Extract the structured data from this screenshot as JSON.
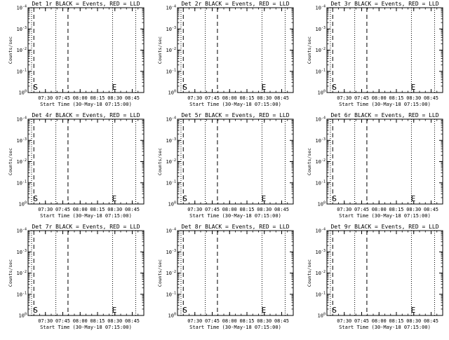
{
  "chart_data": [
    {
      "type": "line",
      "title": "Det 1r BLACK = Events, RED = LLD",
      "xlabel": "Start Time (30-May-18 07:15:00)",
      "ylabel": "Counts/sec"
    },
    {
      "type": "line",
      "title": "Det 2r BLACK = Events, RED = LLD",
      "xlabel": "Start Time (30-May-18 07:15:00)",
      "ylabel": "Counts/sec"
    },
    {
      "type": "line",
      "title": "Det 3r BLACK = Events, RED = LLD",
      "xlabel": "Start Time (30-May-18 07:15:00)",
      "ylabel": "Counts/sec"
    },
    {
      "type": "line",
      "title": "Det 4r BLACK = Events, RED = LLD",
      "xlabel": "Start Time (30-May-18 07:15:00)",
      "ylabel": "Counts/sec"
    },
    {
      "type": "line",
      "title": "Det 5r BLACK = Events, RED = LLD",
      "xlabel": "Start Time (30-May-18 07:15:00)",
      "ylabel": "Counts/sec"
    },
    {
      "type": "line",
      "title": "Det 6r BLACK = Events, RED = LLD",
      "xlabel": "Start Time (30-May-18 07:15:00)",
      "ylabel": "Counts/sec"
    },
    {
      "type": "line",
      "title": "Det 7r BLACK = Events, RED = LLD",
      "xlabel": "Start Time (30-May-18 07:15:00)",
      "ylabel": "Counts/sec"
    },
    {
      "type": "line",
      "title": "Det 8r BLACK = Events, RED = LLD",
      "xlabel": "Start Time (30-May-18 07:15:00)",
      "ylabel": "Counts/sec"
    },
    {
      "type": "line",
      "title": "Det 9r BLACK = Events, RED = LLD",
      "xlabel": "Start Time (30-May-18 07:15:00)",
      "ylabel": "Counts/sec"
    }
  ],
  "shared_axes": {
    "x_ticks": [
      "07:30",
      "07:45",
      "08:00",
      "08:15",
      "08:30",
      "08:45"
    ],
    "x_tick_minutes": [
      30,
      45,
      60,
      75,
      90,
      105
    ],
    "xlim_minutes": [
      15,
      115
    ],
    "y_scale": "log",
    "y_ticks": [
      {
        "base": "10",
        "exp": "0",
        "value": 1
      },
      {
        "base": "10",
        "exp": "-1",
        "value": 0.1
      },
      {
        "base": "10",
        "exp": "-2",
        "value": 0.01
      },
      {
        "base": "10",
        "exp": "-3",
        "value": 0.001
      },
      {
        "base": "10",
        "exp": "-4",
        "value": 0.0001
      }
    ]
  },
  "markers": {
    "dotted_lines_minutes": [
      18,
      39,
      88,
      108
    ],
    "dashed_lines_minutes": [
      20,
      49.5
    ],
    "labels": [
      {
        "text": "S",
        "minute": 19.5
      },
      {
        "text": "E",
        "minute": 87.5
      }
    ],
    "series_colors": {
      "events": "#000000",
      "lld": "#ff0000"
    }
  }
}
